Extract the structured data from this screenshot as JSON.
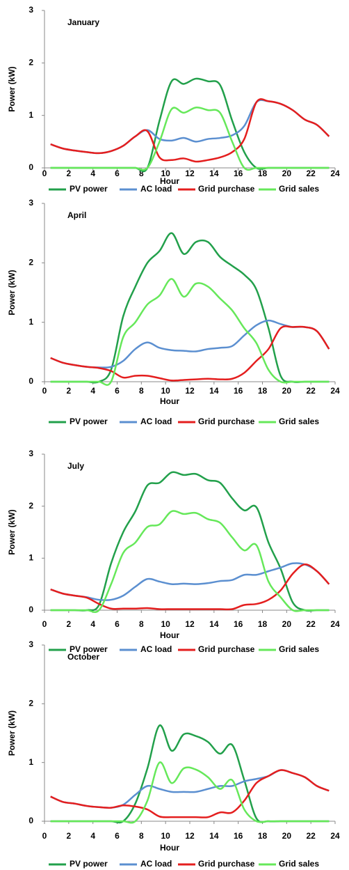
{
  "chart_data": [
    {
      "type": "line",
      "title": "January",
      "xlabel": "Hour",
      "ylabel": "Power (kW)",
      "x": [
        0.5,
        1.5,
        2.5,
        3.5,
        4.5,
        5.5,
        6.5,
        7.5,
        8.5,
        9.5,
        10.5,
        11.5,
        12.5,
        13.5,
        14.5,
        15.5,
        16.5,
        17.5,
        18.5,
        19.5,
        20.5,
        21.5,
        22.5,
        23.5
      ],
      "xlim": [
        0,
        24
      ],
      "xticks": [
        0,
        2,
        4,
        6,
        8,
        10,
        12,
        14,
        16,
        18,
        20,
        22,
        24
      ],
      "ylim": [
        0,
        3
      ],
      "yticks": [
        0,
        1,
        2,
        3
      ],
      "series": [
        {
          "name": "PV power",
          "color": "#22a04b",
          "values": [
            0,
            0,
            0,
            0,
            0,
            0,
            0,
            0,
            0,
            0.9,
            1.65,
            1.6,
            1.7,
            1.65,
            1.58,
            0.9,
            0.3,
            0,
            0,
            0,
            0,
            0,
            0,
            0
          ]
        },
        {
          "name": "AC load",
          "color": "#5b8fd0",
          "values": [
            0.45,
            0.37,
            0.33,
            0.3,
            0.28,
            0.32,
            0.42,
            0.6,
            0.72,
            0.55,
            0.52,
            0.57,
            0.5,
            0.55,
            0.57,
            0.62,
            0.8,
            1.25,
            1.27,
            1.22,
            1.1,
            0.92,
            0.82,
            0.6
          ]
        },
        {
          "name": "Grid purchase",
          "color": "#e41e1e",
          "values": [
            0.45,
            0.37,
            0.33,
            0.3,
            0.28,
            0.32,
            0.42,
            0.6,
            0.7,
            0.2,
            0.15,
            0.18,
            0.12,
            0.15,
            0.2,
            0.3,
            0.55,
            1.25,
            1.27,
            1.22,
            1.1,
            0.92,
            0.82,
            0.6
          ]
        },
        {
          "name": "Grid sales",
          "color": "#66e85a",
          "values": [
            0,
            0,
            0,
            0,
            0,
            0,
            0,
            0,
            0,
            0.5,
            1.12,
            1.05,
            1.15,
            1.1,
            1.05,
            0.5,
            0,
            0,
            0,
            0,
            0,
            0,
            0,
            0
          ]
        }
      ]
    },
    {
      "type": "line",
      "title": "April",
      "xlabel": "Hour",
      "ylabel": "Power (kW)",
      "x": [
        0.5,
        1.5,
        2.5,
        3.5,
        4.5,
        5.5,
        6.5,
        7.5,
        8.5,
        9.5,
        10.5,
        11.5,
        12.5,
        13.5,
        14.5,
        15.5,
        16.5,
        17.5,
        18.5,
        19.5,
        20.5,
        21.5,
        22.5,
        23.5
      ],
      "xlim": [
        0,
        24
      ],
      "xticks": [
        0,
        2,
        4,
        6,
        8,
        10,
        12,
        14,
        16,
        18,
        20,
        22,
        24
      ],
      "ylim": [
        0,
        3
      ],
      "yticks": [
        0,
        1,
        2,
        3
      ],
      "series": [
        {
          "name": "PV power",
          "color": "#22a04b",
          "values": [
            0,
            0,
            0,
            0,
            0,
            0.2,
            1.1,
            1.6,
            2.0,
            2.2,
            2.5,
            2.15,
            2.35,
            2.35,
            2.1,
            1.95,
            1.8,
            1.55,
            0.9,
            0.1,
            0,
            0,
            0,
            0
          ]
        },
        {
          "name": "AC load",
          "color": "#5b8fd0",
          "values": [
            0.4,
            0.32,
            0.28,
            0.25,
            0.24,
            0.25,
            0.35,
            0.55,
            0.66,
            0.57,
            0.53,
            0.52,
            0.51,
            0.55,
            0.57,
            0.6,
            0.78,
            0.95,
            1.03,
            0.97,
            0.92,
            0.92,
            0.85,
            0.55
          ]
        },
        {
          "name": "Grid purchase",
          "color": "#e41e1e",
          "values": [
            0.4,
            0.32,
            0.28,
            0.25,
            0.23,
            0.18,
            0.07,
            0.1,
            0.1,
            0.06,
            0.02,
            0.03,
            0.04,
            0.05,
            0.04,
            0.05,
            0.15,
            0.35,
            0.55,
            0.9,
            0.92,
            0.92,
            0.85,
            0.55
          ]
        },
        {
          "name": "Grid sales",
          "color": "#66e85a",
          "values": [
            0,
            0,
            0,
            0,
            0,
            0,
            0.75,
            1.0,
            1.3,
            1.45,
            1.73,
            1.43,
            1.65,
            1.6,
            1.4,
            1.2,
            0.9,
            0.65,
            0.2,
            0,
            0,
            0,
            0,
            0
          ]
        }
      ]
    },
    {
      "type": "line",
      "title": "July",
      "xlabel": "Hour",
      "ylabel": "Power (kW)",
      "x": [
        0.5,
        1.5,
        2.5,
        3.5,
        4.5,
        5.5,
        6.5,
        7.5,
        8.5,
        9.5,
        10.5,
        11.5,
        12.5,
        13.5,
        14.5,
        15.5,
        16.5,
        17.5,
        18.5,
        19.5,
        20.5,
        21.5,
        22.5,
        23.5
      ],
      "xlim": [
        0,
        24
      ],
      "xticks": [
        0,
        2,
        4,
        6,
        8,
        10,
        12,
        14,
        16,
        18,
        20,
        22,
        24
      ],
      "ylim": [
        0,
        3
      ],
      "yticks": [
        0,
        1,
        2,
        3
      ],
      "series": [
        {
          "name": "PV power",
          "color": "#22a04b",
          "values": [
            0,
            0,
            0,
            0,
            0.1,
            0.9,
            1.5,
            1.9,
            2.4,
            2.45,
            2.65,
            2.6,
            2.62,
            2.5,
            2.45,
            2.15,
            1.92,
            1.98,
            1.3,
            0.8,
            0.15,
            0,
            0,
            0
          ]
        },
        {
          "name": "AC load",
          "color": "#5b8fd0",
          "values": [
            0.4,
            0.32,
            0.28,
            0.25,
            0.2,
            0.2,
            0.28,
            0.45,
            0.6,
            0.55,
            0.5,
            0.51,
            0.5,
            0.52,
            0.56,
            0.58,
            0.68,
            0.68,
            0.75,
            0.82,
            0.9,
            0.88,
            0.75,
            0.5
          ]
        },
        {
          "name": "Grid purchase",
          "color": "#e41e1e",
          "values": [
            0.4,
            0.32,
            0.28,
            0.24,
            0.12,
            0.03,
            0.03,
            0.03,
            0.04,
            0.02,
            0.02,
            0.02,
            0.02,
            0.02,
            0.02,
            0.02,
            0.1,
            0.12,
            0.2,
            0.38,
            0.7,
            0.88,
            0.75,
            0.5
          ]
        },
        {
          "name": "Grid sales",
          "color": "#66e85a",
          "values": [
            0,
            0,
            0,
            0,
            0,
            0.5,
            1.1,
            1.3,
            1.6,
            1.65,
            1.9,
            1.85,
            1.87,
            1.75,
            1.68,
            1.4,
            1.15,
            1.25,
            0.55,
            0.25,
            0,
            0,
            0,
            0
          ]
        }
      ]
    },
    {
      "type": "line",
      "title": "October",
      "xlabel": "Hour",
      "ylabel": "Power (kW)",
      "x": [
        0.5,
        1.5,
        2.5,
        3.5,
        4.5,
        5.5,
        6.5,
        7.5,
        8.5,
        9.5,
        10.5,
        11.5,
        12.5,
        13.5,
        14.5,
        15.5,
        16.5,
        17.5,
        18.5,
        19.5,
        20.5,
        21.5,
        22.5,
        23.5
      ],
      "xlim": [
        0,
        24
      ],
      "xticks": [
        0,
        2,
        4,
        6,
        8,
        10,
        12,
        14,
        16,
        18,
        20,
        22,
        24
      ],
      "ylim": [
        0,
        3
      ],
      "yticks": [
        0,
        1,
        2,
        3
      ],
      "series": [
        {
          "name": "PV power",
          "color": "#22a04b",
          "values": [
            0,
            0,
            0,
            0,
            0,
            0,
            0,
            0.3,
            0.9,
            1.63,
            1.2,
            1.48,
            1.45,
            1.35,
            1.15,
            1.3,
            0.7,
            0.05,
            0,
            0,
            0,
            0,
            0,
            0
          ]
        },
        {
          "name": "AC load",
          "color": "#5b8fd0",
          "values": [
            0.42,
            0.33,
            0.3,
            0.26,
            0.24,
            0.23,
            0.28,
            0.45,
            0.6,
            0.55,
            0.5,
            0.5,
            0.5,
            0.55,
            0.6,
            0.6,
            0.68,
            0.72,
            0.77,
            0.87,
            0.82,
            0.75,
            0.6,
            0.52
          ]
        },
        {
          "name": "Grid purchase",
          "color": "#e41e1e",
          "values": [
            0.42,
            0.33,
            0.3,
            0.26,
            0.24,
            0.23,
            0.27,
            0.25,
            0.2,
            0.08,
            0.07,
            0.07,
            0.07,
            0.07,
            0.15,
            0.15,
            0.35,
            0.65,
            0.77,
            0.87,
            0.82,
            0.75,
            0.6,
            0.52
          ]
        },
        {
          "name": "Grid sales",
          "color": "#66e85a",
          "values": [
            0,
            0,
            0,
            0,
            0,
            0,
            0,
            0,
            0.35,
            1.0,
            0.65,
            0.9,
            0.88,
            0.75,
            0.55,
            0.7,
            0.2,
            0,
            0,
            0,
            0,
            0,
            0,
            0
          ]
        }
      ]
    }
  ]
}
